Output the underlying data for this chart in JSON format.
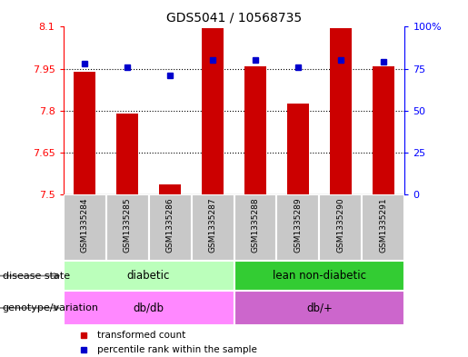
{
  "title": "GDS5041 / 10568735",
  "samples": [
    "GSM1335284",
    "GSM1335285",
    "GSM1335286",
    "GSM1335287",
    "GSM1335288",
    "GSM1335289",
    "GSM1335290",
    "GSM1335291"
  ],
  "transformed_count": [
    7.94,
    7.79,
    7.535,
    8.095,
    7.96,
    7.825,
    8.095,
    7.96
  ],
  "percentile_rank": [
    78,
    76,
    71,
    80,
    80,
    76,
    80,
    79
  ],
  "ymin": 7.5,
  "ymax": 8.1,
  "yticks": [
    7.5,
    7.65,
    7.8,
    7.95,
    8.1
  ],
  "ytick_labels": [
    "7.5",
    "7.65",
    "7.8",
    "7.95",
    "8.1"
  ],
  "y2min": 0,
  "y2max": 100,
  "y2ticks": [
    0,
    25,
    50,
    75,
    100
  ],
  "y2tick_labels": [
    "0",
    "25",
    "50",
    "75",
    "100%"
  ],
  "bar_color": "#cc0000",
  "dot_color": "#0000cc",
  "disease_state_groups": [
    {
      "label": "diabetic",
      "start": 0,
      "end": 4,
      "color": "#bbffbb"
    },
    {
      "label": "lean non-diabetic",
      "start": 4,
      "end": 8,
      "color": "#33cc33"
    }
  ],
  "genotype_groups": [
    {
      "label": "db/db",
      "start": 0,
      "end": 4,
      "color": "#ff88ff"
    },
    {
      "label": "db/+",
      "start": 4,
      "end": 8,
      "color": "#cc66cc"
    }
  ],
  "disease_state_label": "disease state",
  "genotype_label": "genotype/variation",
  "legend_items": [
    {
      "label": "transformed count",
      "color": "#cc0000"
    },
    {
      "label": "percentile rank within the sample",
      "color": "#0000cc"
    }
  ],
  "bar_width": 0.5,
  "x_tick_fontsize": 6.5,
  "y_tick_fontsize": 8,
  "title_fontsize": 10,
  "xtick_gray": "#c8c8c8"
}
